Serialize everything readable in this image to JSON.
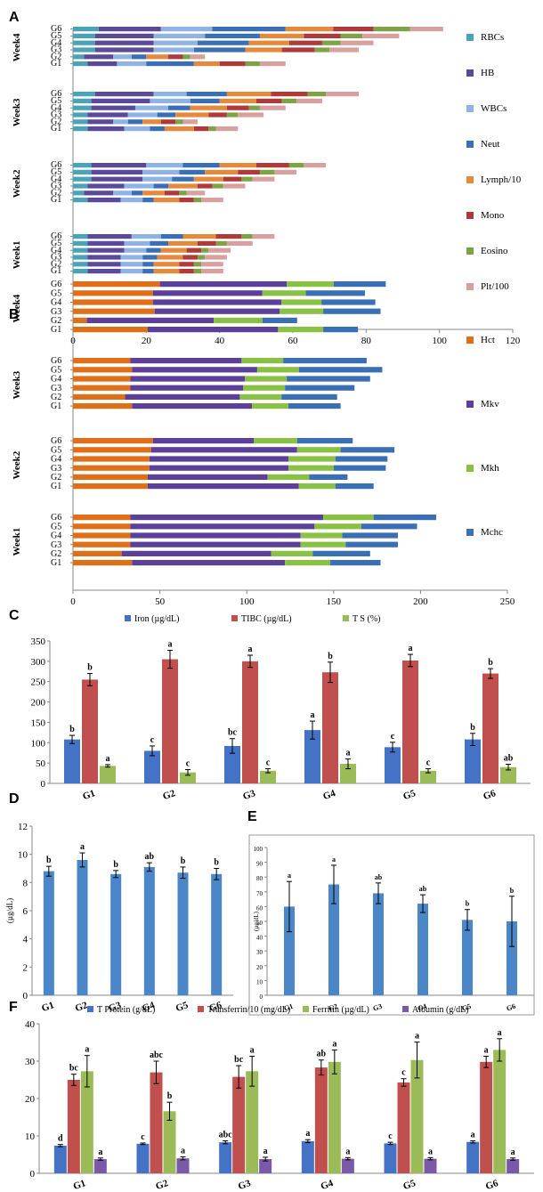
{
  "chart_data": [
    {
      "panel": "A",
      "type": "bar",
      "orientation": "horizontal",
      "stacked": true,
      "xlim": [
        0,
        120
      ],
      "xticks": [
        0,
        20,
        40,
        60,
        80,
        100,
        120
      ],
      "weeks": [
        "Week1",
        "Week2",
        "Week3",
        "Week4"
      ],
      "groups": [
        "G1",
        "G2",
        "G3",
        "G4",
        "G5",
        "G6"
      ],
      "legend_position": "right",
      "series": [
        {
          "name": "RBCs",
          "color": "#4aa3b7",
          "values": {
            "Week1": [
              4,
              4,
              4,
              4,
              4,
              4
            ],
            "Week2": [
              4,
              3,
              4,
              5,
              5,
              5
            ],
            "Week3": [
              4,
              4,
              4,
              5,
              5,
              6
            ],
            "Week4": [
              4,
              3,
              6,
              6,
              6,
              7
            ]
          }
        },
        {
          "name": "HB",
          "color": "#5b4a9a",
          "values": {
            "Week1": [
              9,
              9,
              9,
              10,
              10,
              12
            ],
            "Week2": [
              9,
              8,
              10,
              14,
              14,
              15
            ],
            "Week3": [
              10,
              7,
              11,
              12,
              16,
              16
            ],
            "Week4": [
              8,
              8,
              16,
              16,
              16,
              17
            ]
          }
        },
        {
          "name": "WBCs",
          "color": "#8fb4e3",
          "values": {
            "Week1": [
              6,
              6,
              6,
              6,
              7,
              8
            ],
            "Week2": [
              6,
              5,
              8,
              8,
              10,
              10
            ],
            "Week3": [
              7,
              4,
              8,
              9,
              11,
              9
            ],
            "Week4": [
              8,
              5,
              11,
              12,
              14,
              14
            ]
          }
        },
        {
          "name": "Neut",
          "color": "#3a6fb5",
          "values": {
            "Week1": [
              3,
              3,
              4,
              4,
              5,
              6
            ],
            "Week2": [
              3,
              3,
              4,
              6,
              7,
              10
            ],
            "Week3": [
              4,
              4,
              5,
              6,
              8,
              11
            ],
            "Week4": [
              13,
              4,
              14,
              14,
              15,
              20
            ]
          }
        },
        {
          "name": "Lymph/10",
          "color": "#e58a3c",
          "values": {
            "Week1": [
              7,
              7,
              7,
              7,
              8,
              9
            ],
            "Week2": [
              7,
              6,
              8,
              8,
              9,
              10
            ],
            "Week3": [
              8,
              5,
              9,
              10,
              10,
              12
            ],
            "Week4": [
              7,
              6,
              10,
              11,
              12,
              13
            ]
          }
        },
        {
          "name": "Mono",
          "color": "#b03a3a",
          "values": {
            "Week1": [
              4,
              4,
              4,
              4,
              5,
              7
            ],
            "Week2": [
              4,
              4,
              4,
              5,
              6,
              9
            ],
            "Week3": [
              4,
              4,
              5,
              6,
              7,
              10
            ],
            "Week4": [
              7,
              4,
              9,
              9,
              10,
              11
            ]
          }
        },
        {
          "name": "Eosino",
          "color": "#7ea347",
          "values": {
            "Week1": [
              2,
              2,
              2,
              2,
              3,
              3
            ],
            "Week2": [
              2,
              2,
              3,
              3,
              4,
              4
            ],
            "Week3": [
              2,
              2,
              3,
              3,
              4,
              5
            ],
            "Week4": [
              4,
              2,
              4,
              5,
              6,
              10
            ]
          }
        },
        {
          "name": "Plt/100",
          "color": "#d9a0a0",
          "values": {
            "Week1": [
              6,
              6,
              6,
              6,
              7,
              6
            ],
            "Week2": [
              6,
              5,
              6,
              6,
              6,
              6
            ],
            "Week3": [
              6,
              4,
              7,
              7,
              7,
              9
            ],
            "Week4": [
              7,
              4,
              8,
              9,
              10,
              9
            ]
          }
        }
      ]
    },
    {
      "panel": "B",
      "type": "bar",
      "orientation": "horizontal",
      "stacked": true,
      "xlim": [
        0,
        250
      ],
      "xticks": [
        0,
        50,
        100,
        150,
        200,
        250
      ],
      "weeks": [
        "Week1",
        "Week2",
        "Week3",
        "Week4"
      ],
      "groups": [
        "G1",
        "G2",
        "G3",
        "G4",
        "G5",
        "G6"
      ],
      "legend_position": "right",
      "series": [
        {
          "name": "Hct",
          "color": "#e06f18",
          "values": {
            "Week1": [
              34,
              28,
              33,
              33,
              33,
              33
            ],
            "Week2": [
              43,
              43,
              44,
              44,
              45,
              46
            ],
            "Week3": [
              34,
              30,
              33,
              33,
              34,
              33
            ],
            "Week4": [
              43,
              8,
              47,
              46,
              46,
              50
            ]
          }
        },
        {
          "name": "Mkv",
          "color": "#5b3f98",
          "values": {
            "Week1": [
              88,
              86,
              98,
              98,
              106,
              111
            ],
            "Week2": [
              87,
              69,
              80,
              80,
              84,
              58
            ],
            "Week3": [
              69,
              66,
              65,
              66,
              72,
              64
            ],
            "Week4": [
              75,
              73,
              72,
              74,
              63,
              73
            ]
          }
        },
        {
          "name": "Mkh",
          "color": "#8ac043",
          "values": {
            "Week1": [
              26,
              24,
              26,
              24,
              27,
              29
            ],
            "Week2": [
              21,
              24,
              26,
              27,
              25,
              25
            ],
            "Week3": [
              21,
              24,
              24,
              24,
              24,
              24
            ],
            "Week4": [
              26,
              28,
              25,
              23,
              25,
              27
            ]
          }
        },
        {
          "name": "Mchc",
          "color": "#3b6fb3",
          "values": {
            "Week1": [
              29,
              33,
              30,
              32,
              32,
              36
            ],
            "Week2": [
              22,
              22,
              30,
              30,
              31,
              32
            ],
            "Week3": [
              30,
              32,
              40,
              48,
              48,
              48
            ],
            "Week4": [
              20,
              20,
              33,
              31,
              34,
              30
            ]
          }
        }
      ]
    },
    {
      "panel": "C",
      "type": "bar",
      "categories": [
        "G1",
        "G2",
        "G3",
        "G4",
        "G5",
        "G6"
      ],
      "ylim": [
        0,
        350
      ],
      "yticks": [
        0,
        50,
        100,
        150,
        200,
        250,
        300,
        350
      ],
      "legend_position": "top",
      "series": [
        {
          "name": "Iron  (µg/dL)",
          "color": "#4472c4",
          "values": [
            108,
            80,
            92,
            131,
            89,
            108
          ],
          "errors": [
            10,
            12,
            18,
            22,
            12,
            15
          ],
          "labels": [
            "b",
            "c",
            "bc",
            "a",
            "c",
            "b"
          ]
        },
        {
          "name": "TIBC  (µg/dL)",
          "color": "#c0504d",
          "values": [
            255,
            305,
            300,
            273,
            302,
            270
          ],
          "errors": [
            15,
            22,
            15,
            25,
            15,
            12
          ],
          "labels": [
            "b",
            "a",
            "a",
            "b",
            "a",
            "b"
          ]
        },
        {
          "name": "T S (%)",
          "color": "#9bbb59",
          "values": [
            43,
            27,
            31,
            48,
            31,
            40
          ],
          "errors": [
            3,
            7,
            5,
            12,
            5,
            7
          ],
          "labels": [
            "a",
            "c",
            "c",
            "a",
            "c",
            "ab"
          ]
        }
      ]
    },
    {
      "panel": "D",
      "type": "bar",
      "categories": [
        "G1",
        "G2",
        "G3",
        "G4",
        "G5",
        "G6"
      ],
      "ylabel": "(µg/dL)",
      "ylim": [
        0,
        12
      ],
      "yticks": [
        0,
        2,
        4,
        6,
        8,
        10,
        12
      ],
      "series": [
        {
          "name": "D",
          "color": "#4a86c8",
          "values": [
            8.8,
            9.6,
            8.6,
            9.1,
            8.7,
            8.6
          ],
          "errors": [
            0.35,
            0.5,
            0.25,
            0.3,
            0.4,
            0.4
          ],
          "labels": [
            "b",
            "a",
            "b",
            "ab",
            "b",
            "b"
          ]
        }
      ]
    },
    {
      "panel": "E",
      "type": "bar",
      "categories": [
        "G1",
        "G2",
        "G3",
        "G4",
        "G5",
        "G6"
      ],
      "ylabel": "(µg/dL)",
      "ylim": [
        0,
        100
      ],
      "yticks": [
        0,
        10,
        20,
        30,
        40,
        50,
        60,
        70,
        80,
        90,
        100
      ],
      "series": [
        {
          "name": "E",
          "color": "#4a86c8",
          "values": [
            60,
            75,
            69,
            62,
            51,
            50
          ],
          "errors": [
            17,
            13,
            7,
            6,
            7,
            17
          ],
          "labels": [
            "a",
            "a",
            "ab",
            "ab",
            "b",
            "b"
          ]
        }
      ]
    },
    {
      "panel": "F",
      "type": "bar",
      "categories": [
        "G1",
        "G2",
        "G3",
        "G4",
        "G5",
        "G6"
      ],
      "ylim": [
        0,
        40
      ],
      "yticks": [
        0,
        10,
        20,
        30,
        40
      ],
      "legend_position": "top",
      "series": [
        {
          "name": "T Protein (g/dL)",
          "color": "#4472c4",
          "values": [
            7.4,
            7.9,
            8.3,
            8.6,
            8.0,
            8.4
          ],
          "errors": [
            0.3,
            0.2,
            0.4,
            0.4,
            0.3,
            0.3
          ],
          "labels": [
            "d",
            "c",
            "abc",
            "a",
            "c",
            "a"
          ]
        },
        {
          "name": "Transferrin/10 (mg/dL)",
          "color": "#c0504d",
          "values": [
            25,
            27,
            25.8,
            28.3,
            24.3,
            29.8
          ],
          "errors": [
            1.5,
            3,
            3,
            2,
            1,
            1.5
          ],
          "labels": [
            "bc",
            "abc",
            "bc",
            "ab",
            "c",
            "a"
          ]
        },
        {
          "name": "Ferritin (µg/dL)",
          "color": "#9bbb59",
          "values": [
            27.3,
            16.6,
            27.3,
            29.8,
            30.3,
            33
          ],
          "errors": [
            4.2,
            2.4,
            4,
            3.2,
            4.8,
            3
          ],
          "labels": [
            "a",
            "b",
            "a",
            "a",
            "a",
            "a"
          ]
        },
        {
          "name": "Albumin (g/dL)",
          "color": "#7a5aa8",
          "values": [
            3.8,
            4.0,
            3.8,
            3.9,
            3.9,
            3.8
          ],
          "errors": [
            0.3,
            0.4,
            0.5,
            0.3,
            0.3,
            0.3
          ],
          "labels": [
            "a",
            "a",
            "a",
            "a",
            "a",
            "a"
          ]
        }
      ]
    }
  ]
}
